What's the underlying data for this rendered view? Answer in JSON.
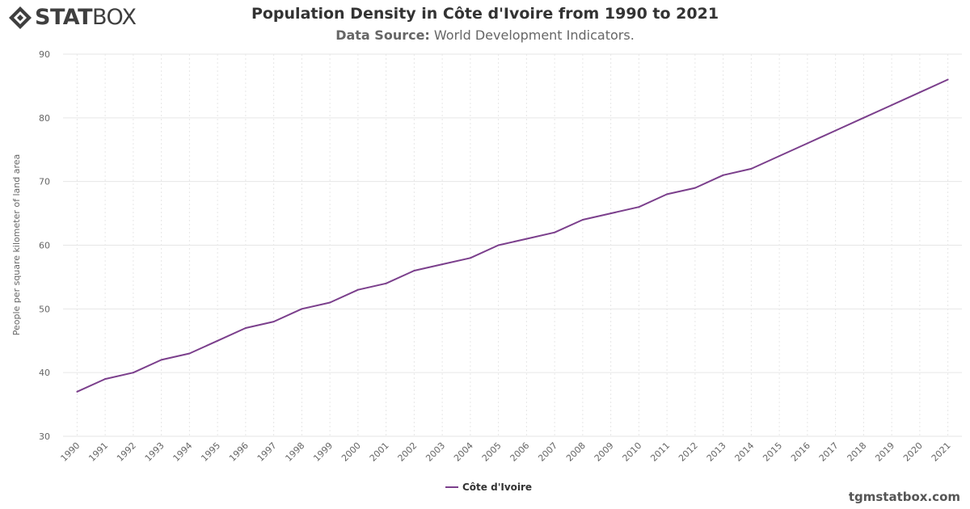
{
  "brand": {
    "logo_bold": "STAT",
    "logo_regular": "BOX",
    "logo_icon": "statbox-diamond-icon"
  },
  "footer": {
    "site": "tgmstatbox.com"
  },
  "chart_data": {
    "type": "line",
    "title": "Population Density in Côte d'Ivoire from 1990 to 2021",
    "subtitle_label": "Data Source:",
    "subtitle_value": "World Development Indicators.",
    "xlabel": "",
    "ylabel": "People per square kilometer of land area",
    "ylim": [
      30,
      90
    ],
    "yticks": [
      "30",
      "40",
      "50",
      "60",
      "70",
      "80",
      "90"
    ],
    "grid": true,
    "legend_position": "bottom-center",
    "x": [
      "1990",
      "1991",
      "1992",
      "1993",
      "1994",
      "1995",
      "1996",
      "1997",
      "1998",
      "1999",
      "2000",
      "2001",
      "2002",
      "2003",
      "2004",
      "2005",
      "2006",
      "2007",
      "2008",
      "2009",
      "2010",
      "2011",
      "2012",
      "2013",
      "2014",
      "2015",
      "2016",
      "2017",
      "2018",
      "2019",
      "2020",
      "2021"
    ],
    "series": [
      {
        "name": "Côte d'Ivoire",
        "color": "#7b3f8c",
        "values": [
          37,
          39,
          40,
          42,
          43,
          45,
          47,
          48,
          50,
          51,
          53,
          54,
          56,
          57,
          58,
          60,
          61,
          62,
          64,
          65,
          66,
          68,
          69,
          71,
          72,
          74,
          76,
          78,
          80,
          82,
          84,
          86
        ]
      }
    ]
  }
}
